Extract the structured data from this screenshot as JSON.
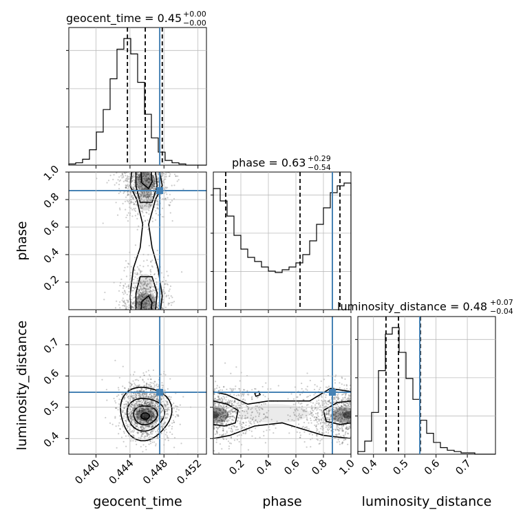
{
  "colors": {
    "truth": "#4682b4",
    "hist": "#000000",
    "grid": "#bbbbbb",
    "scatter": "#444444"
  },
  "chart_data": {
    "type": "corner",
    "parameters": [
      "geocent_time",
      "phase",
      "luminosity_distance"
    ],
    "grid": true,
    "truths": {
      "geocent_time": 0.4475,
      "phase": 0.865,
      "luminosity_distance": 0.548
    },
    "titles": {
      "geocent_time": {
        "text": "geocent_time = 0.45",
        "plus": "+0.00",
        "minus": "−0.00"
      },
      "phase": {
        "text": "phase = 0.63",
        "plus": "+0.29",
        "minus": "−0.54"
      },
      "luminosity_distance": {
        "text": "luminosity_distance = 0.48",
        "plus": "+0.07",
        "minus": "−0.04"
      }
    },
    "axes": {
      "geocent_time": {
        "label": "geocent_time",
        "range": [
          0.4368,
          0.453
        ],
        "ticks": [
          0.44,
          0.444,
          0.448,
          0.452
        ],
        "tick_labels": [
          "0.440",
          "0.444",
          "0.448",
          "0.452"
        ]
      },
      "phase": {
        "label": "phase",
        "range": [
          0.0,
          1.0
        ],
        "ticks": [
          0.2,
          0.4,
          0.6,
          0.8,
          1.0
        ],
        "tick_labels": [
          "0.2",
          "0.4",
          "0.6",
          "0.8",
          "1.0"
        ],
        "y_ticks": [
          0.2,
          0.4,
          0.6,
          0.8,
          1.0
        ],
        "y_tick_labels": [
          "0.2",
          "0.4",
          "0.6",
          "0.8",
          "1.0"
        ]
      },
      "luminosity_distance": {
        "label": "luminosity_distance",
        "range": [
          0.35,
          0.79
        ],
        "ticks": [
          0.4,
          0.5,
          0.6,
          0.7
        ],
        "tick_labels": [
          "0.4",
          "0.5",
          "0.6",
          "0.7"
        ]
      }
    },
    "histograms": {
      "geocent_time": {
        "edges_range": [
          0.4368,
          0.453
        ],
        "counts": [
          1,
          2,
          5,
          13,
          28,
          47,
          73,
          98,
          107,
          94,
          70,
          43,
          23,
          11,
          4,
          2,
          1,
          0,
          0,
          0
        ],
        "quantiles": [
          0.4437,
          0.4458,
          0.4478
        ]
      },
      "phase": {
        "edges_range": [
          0.0,
          1.0
        ],
        "counts": [
          88,
          79,
          68,
          54,
          44,
          38,
          35,
          31,
          28,
          27,
          29,
          31,
          34,
          40,
          50,
          62,
          74,
          85,
          90,
          92
        ],
        "quantiles": [
          0.09,
          0.63,
          0.92
        ]
      },
      "luminosity_distance": {
        "edges_range": [
          0.35,
          0.79
        ],
        "counts": [
          2,
          10,
          32,
          64,
          92,
          97,
          78,
          58,
          42,
          26,
          16,
          9,
          5,
          3,
          2,
          1,
          1,
          0,
          0,
          0
        ],
        "quantiles": [
          0.44,
          0.48,
          0.55
        ]
      }
    }
  }
}
